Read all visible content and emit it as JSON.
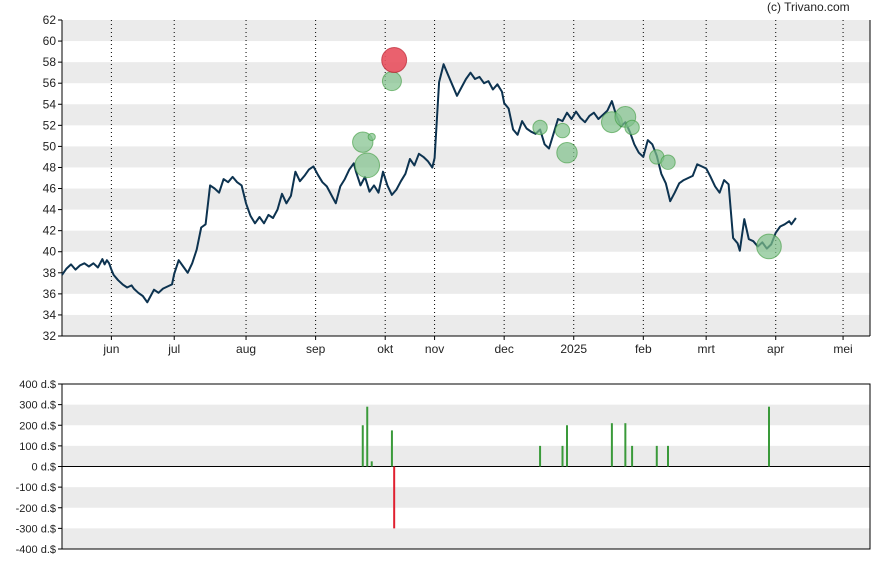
{
  "credit": "(c) Trivano.com",
  "colors": {
    "price_line": "#0d3350",
    "buy": "#3a9a3a",
    "sell": "#e02030",
    "buy_bubble": "#7fc08a",
    "sell_bubble": "#e8505e",
    "band": "#ebebeb",
    "axis": "#000000",
    "vgrid": "#000000"
  },
  "chart_data": [
    {
      "type": "line",
      "title": "",
      "xlabel": "",
      "ylabel": "",
      "ylim": [
        32,
        62
      ],
      "yticks": [
        32,
        34,
        36,
        38,
        40,
        42,
        44,
        46,
        48,
        50,
        52,
        54,
        56,
        58,
        60,
        62
      ],
      "xticks": [
        "jun",
        "jul",
        "aug",
        "sep",
        "okt",
        "nov",
        "dec",
        "2025",
        "feb",
        "mrt",
        "apr",
        "mei"
      ],
      "xrange_days": [
        0,
        360
      ],
      "xtick_days": [
        22,
        50,
        82,
        113,
        144,
        166,
        197,
        228,
        259,
        287,
        318,
        348
      ],
      "grid": "alternating horizontal bands, dotted vertical lines at month ticks",
      "series": [
        {
          "values": [
            [
              0,
              37.8
            ],
            [
              2,
              38.4
            ],
            [
              4,
              38.8
            ],
            [
              6,
              38.3
            ],
            [
              8,
              38.7
            ],
            [
              10,
              38.9
            ],
            [
              12,
              38.6
            ],
            [
              14,
              38.9
            ],
            [
              16,
              38.5
            ],
            [
              18,
              39.3
            ],
            [
              19,
              38.8
            ],
            [
              20,
              39.2
            ],
            [
              21,
              38.9
            ],
            [
              22,
              38.3
            ],
            [
              23,
              37.8
            ],
            [
              25,
              37.3
            ],
            [
              27,
              36.9
            ],
            [
              29,
              36.6
            ],
            [
              31,
              36.8
            ],
            [
              32,
              36.5
            ],
            [
              34,
              36.1
            ],
            [
              36,
              35.8
            ],
            [
              38,
              35.2
            ],
            [
              39,
              35.6
            ],
            [
              41,
              36.4
            ],
            [
              43,
              36.1
            ],
            [
              45,
              36.5
            ],
            [
              47,
              36.7
            ],
            [
              49,
              36.9
            ],
            [
              50,
              37.9
            ],
            [
              52,
              39.2
            ],
            [
              54,
              38.6
            ],
            [
              56,
              38.0
            ],
            [
              58,
              38.9
            ],
            [
              60,
              40.2
            ],
            [
              62,
              42.3
            ],
            [
              64,
              42.6
            ],
            [
              66,
              46.3
            ],
            [
              68,
              46.0
            ],
            [
              70,
              45.6
            ],
            [
              72,
              46.9
            ],
            [
              74,
              46.6
            ],
            [
              76,
              47.1
            ],
            [
              78,
              46.6
            ],
            [
              80,
              46.3
            ],
            [
              82,
              44.6
            ],
            [
              84,
              43.4
            ],
            [
              86,
              42.7
            ],
            [
              88,
              43.3
            ],
            [
              90,
              42.7
            ],
            [
              92,
              43.5
            ],
            [
              94,
              43.2
            ],
            [
              96,
              44.0
            ],
            [
              98,
              45.5
            ],
            [
              100,
              44.6
            ],
            [
              102,
              45.3
            ],
            [
              104,
              47.6
            ],
            [
              106,
              46.7
            ],
            [
              108,
              47.2
            ],
            [
              110,
              47.8
            ],
            [
              112,
              48.1
            ],
            [
              114,
              47.3
            ],
            [
              116,
              46.6
            ],
            [
              118,
              46.2
            ],
            [
              120,
              45.4
            ],
            [
              122,
              44.6
            ],
            [
              124,
              46.2
            ],
            [
              126,
              46.9
            ],
            [
              128,
              47.8
            ],
            [
              130,
              48.4
            ],
            [
              131,
              47.6
            ],
            [
              133,
              46.3
            ],
            [
              135,
              47.1
            ],
            [
              137,
              45.7
            ],
            [
              139,
              46.3
            ],
            [
              141,
              45.6
            ],
            [
              143,
              47.6
            ],
            [
              145,
              46.3
            ],
            [
              147,
              45.4
            ],
            [
              149,
              45.9
            ],
            [
              151,
              46.7
            ],
            [
              153,
              47.4
            ],
            [
              155,
              48.8
            ],
            [
              157,
              48.2
            ],
            [
              159,
              49.3
            ],
            [
              161,
              49.0
            ],
            [
              163,
              48.6
            ],
            [
              165,
              48.0
            ],
            [
              166,
              48.9
            ],
            [
              168,
              56.1
            ],
            [
              170,
              57.8
            ],
            [
              172,
              56.8
            ],
            [
              174,
              55.8
            ],
            [
              176,
              54.8
            ],
            [
              178,
              55.6
            ],
            [
              180,
              56.4
            ],
            [
              182,
              57.0
            ],
            [
              184,
              56.4
            ],
            [
              186,
              56.6
            ],
            [
              188,
              56.0
            ],
            [
              190,
              56.2
            ],
            [
              192,
              55.4
            ],
            [
              194,
              55.9
            ],
            [
              196,
              55.2
            ],
            [
              197,
              54.1
            ],
            [
              199,
              53.6
            ],
            [
              201,
              51.6
            ],
            [
              203,
              51.1
            ],
            [
              205,
              52.4
            ],
            [
              207,
              51.7
            ],
            [
              209,
              51.4
            ],
            [
              211,
              51.2
            ],
            [
              213,
              51.6
            ],
            [
              215,
              50.2
            ],
            [
              217,
              49.8
            ],
            [
              219,
              51.2
            ],
            [
              221,
              52.6
            ],
            [
              223,
              52.4
            ],
            [
              225,
              53.2
            ],
            [
              227,
              52.6
            ],
            [
              229,
              53.3
            ],
            [
              231,
              52.7
            ],
            [
              233,
              52.3
            ],
            [
              235,
              52.9
            ],
            [
              237,
              53.2
            ],
            [
              239,
              52.6
            ],
            [
              241,
              53.0
            ],
            [
              243,
              53.4
            ],
            [
              245,
              54.3
            ],
            [
              247,
              52.9
            ],
            [
              249,
              51.9
            ],
            [
              251,
              52.3
            ],
            [
              253,
              51.4
            ],
            [
              255,
              50.2
            ],
            [
              257,
              49.4
            ],
            [
              259,
              49.0
            ],
            [
              261,
              50.6
            ],
            [
              263,
              50.2
            ],
            [
              265,
              49.1
            ],
            [
              267,
              47.4
            ],
            [
              269,
              46.5
            ],
            [
              271,
              44.8
            ],
            [
              273,
              45.6
            ],
            [
              275,
              46.5
            ],
            [
              277,
              46.8
            ],
            [
              279,
              47.0
            ],
            [
              281,
              47.2
            ],
            [
              283,
              48.3
            ],
            [
              285,
              48.1
            ],
            [
              287,
              47.9
            ],
            [
              289,
              47.1
            ],
            [
              291,
              46.2
            ],
            [
              293,
              45.6
            ],
            [
              295,
              46.8
            ],
            [
              297,
              46.4
            ],
            [
              299,
              41.3
            ],
            [
              301,
              40.8
            ],
            [
              302,
              40.1
            ],
            [
              304,
              43.1
            ],
            [
              306,
              41.2
            ],
            [
              308,
              41.0
            ],
            [
              310,
              40.5
            ],
            [
              312,
              40.9
            ],
            [
              314,
              40.3
            ],
            [
              316,
              40.7
            ],
            [
              318,
              41.8
            ],
            [
              320,
              42.4
            ],
            [
              322,
              42.6
            ],
            [
              324,
              42.9
            ],
            [
              325,
              42.6
            ],
            [
              327,
              43.2
            ]
          ]
        }
      ],
      "trades": [
        {
          "day": 134,
          "price": 50.4,
          "value": 200,
          "side": "buy"
        },
        {
          "day": 136,
          "price": 48.2,
          "value": 290,
          "side": "buy"
        },
        {
          "day": 138,
          "price": 50.9,
          "value": 25,
          "side": "buy"
        },
        {
          "day": 147,
          "price": 56.2,
          "value": 175,
          "side": "buy"
        },
        {
          "day": 148,
          "price": 58.2,
          "value": -300,
          "side": "sell"
        },
        {
          "day": 213,
          "price": 51.8,
          "value": 100,
          "side": "buy"
        },
        {
          "day": 223,
          "price": 51.5,
          "value": 100,
          "side": "buy"
        },
        {
          "day": 225,
          "price": 49.4,
          "value": 200,
          "side": "buy"
        },
        {
          "day": 245,
          "price": 52.3,
          "value": 210,
          "side": "buy"
        },
        {
          "day": 251,
          "price": 52.8,
          "value": 210,
          "side": "buy"
        },
        {
          "day": 254,
          "price": 51.8,
          "value": 100,
          "side": "buy"
        },
        {
          "day": 265,
          "price": 49.0,
          "value": 100,
          "side": "buy"
        },
        {
          "day": 270,
          "price": 48.5,
          "value": 100,
          "side": "buy"
        },
        {
          "day": 315,
          "price": 40.5,
          "value": 290,
          "side": "buy"
        }
      ]
    },
    {
      "type": "bar",
      "title": "",
      "xlabel": "",
      "ylabel": "",
      "ylim": [
        -400,
        400
      ],
      "yticks": [
        "400 d.$",
        "300 d.$",
        "200 d.$",
        "100 d.$",
        "0 d.$",
        "-100 d.$",
        "-200 d.$",
        "-300 d.$",
        "-400 d.$"
      ],
      "ytick_values": [
        400,
        300,
        200,
        100,
        0,
        -100,
        -200,
        -300,
        -400
      ],
      "grid": "alternating horizontal bands"
    }
  ]
}
